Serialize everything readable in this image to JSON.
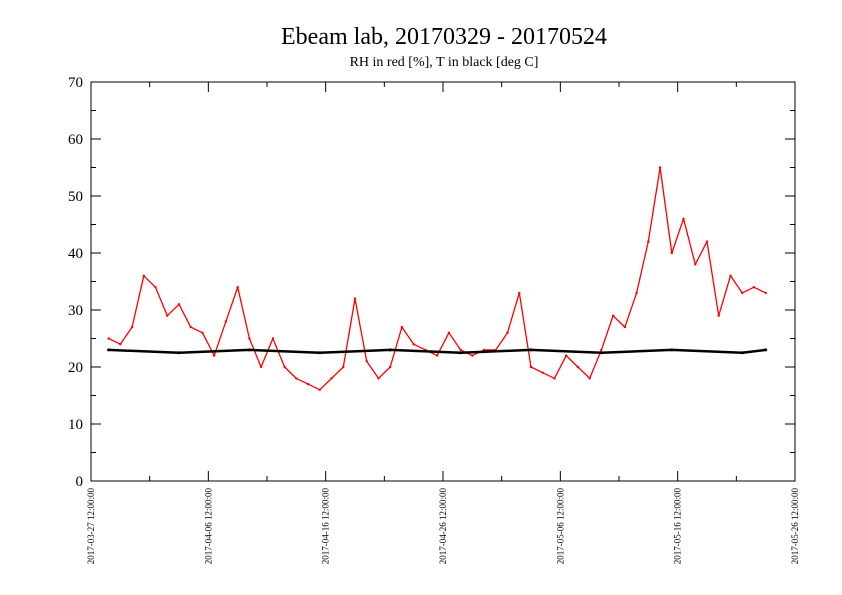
{
  "chart_data": {
    "type": "line",
    "title": "Ebeam lab, 20170329 - 20170524",
    "subtitle": "RH in red [%], T in black [deg C]",
    "xlabel": "",
    "ylabel": "",
    "x_range": [
      "2017-03-27 12:00:00",
      "2017-05-26 12:00:00"
    ],
    "ylim": [
      0,
      70
    ],
    "y_ticks": [
      0,
      10,
      20,
      30,
      40,
      50,
      60,
      70
    ],
    "x_tick_labels": [
      "2017-03-27 12:00:00",
      "2017-04-06 12:00:00",
      "2017-04-16 12:00:00",
      "2017-04-26 12:00:00",
      "2017-05-06 12:00:00",
      "2017-05-16 12:00:00",
      "2017-05-26 12:00:00"
    ],
    "grid": false,
    "legend": "none",
    "series": [
      {
        "color": "#ff0000",
        "x": [
          "2017-03-29",
          "2017-03-30",
          "2017-03-31",
          "2017-04-01",
          "2017-04-02",
          "2017-04-03",
          "2017-04-04",
          "2017-04-05",
          "2017-04-06",
          "2017-04-07",
          "2017-04-08",
          "2017-04-09",
          "2017-04-10",
          "2017-04-11",
          "2017-04-12",
          "2017-04-13",
          "2017-04-14",
          "2017-04-15",
          "2017-04-16",
          "2017-04-17",
          "2017-04-18",
          "2017-04-19",
          "2017-04-20",
          "2017-04-21",
          "2017-04-22",
          "2017-04-23",
          "2017-04-24",
          "2017-04-25",
          "2017-04-26",
          "2017-04-27",
          "2017-04-28",
          "2017-04-29",
          "2017-04-30",
          "2017-05-01",
          "2017-05-02",
          "2017-05-03",
          "2017-05-04",
          "2017-05-05",
          "2017-05-06",
          "2017-05-07",
          "2017-05-08",
          "2017-05-09",
          "2017-05-10",
          "2017-05-11",
          "2017-05-12",
          "2017-05-13",
          "2017-05-14",
          "2017-05-15",
          "2017-05-16",
          "2017-05-17",
          "2017-05-18",
          "2017-05-19",
          "2017-05-20",
          "2017-05-21",
          "2017-05-22",
          "2017-05-23",
          "2017-05-24"
        ],
        "values": [
          25,
          24,
          27,
          36,
          34,
          29,
          31,
          27,
          26,
          22,
          28,
          34,
          25,
          20,
          25,
          20,
          18,
          17,
          16,
          18,
          20,
          32,
          21,
          18,
          20,
          27,
          24,
          23,
          22,
          26,
          23,
          22,
          23,
          23,
          26,
          33,
          20,
          19,
          18,
          22,
          20,
          18,
          23,
          29,
          27,
          33,
          42,
          55,
          40,
          46,
          38,
          42,
          29,
          36,
          33,
          34,
          33
        ]
      },
      {
        "color": "#000000",
        "x": [
          "2017-03-29",
          "2017-04-04",
          "2017-04-10",
          "2017-04-16",
          "2017-04-22",
          "2017-04-28",
          "2017-05-04",
          "2017-05-10",
          "2017-05-16",
          "2017-05-22",
          "2017-05-24"
        ],
        "values": [
          23,
          22.5,
          23,
          22.5,
          23,
          22.5,
          23,
          22.5,
          23,
          22.5,
          23
        ]
      }
    ]
  }
}
